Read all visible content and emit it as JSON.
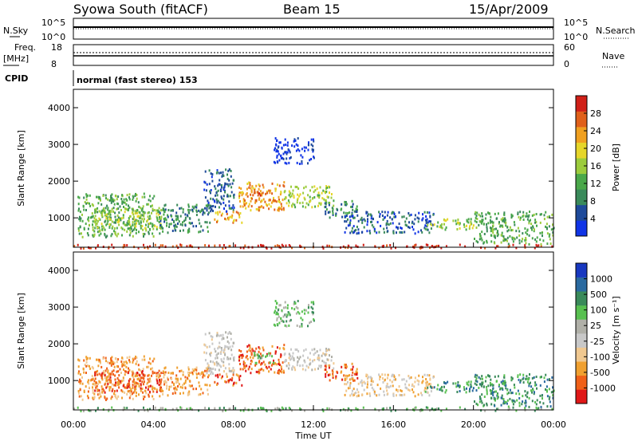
{
  "header": {
    "station": "Syowa South (fitACF)",
    "beam": "Beam 15",
    "date": "15/Apr/2009"
  },
  "top_panels": {
    "nsky_label": "N.Sky",
    "nsky_top": "10^5",
    "nsky_bottom": "10^0",
    "nsearch_label": "N.Search",
    "nsearch_top": "10^5",
    "nsearch_bottom": "10^0",
    "freq_label_1": "Freq.",
    "freq_label_2": "[MHz]",
    "freq_top": "18",
    "freq_bottom": "8",
    "nave_label": "Nave",
    "nave_top": "60",
    "nave_bottom": "0",
    "cpid_label": "CPID",
    "cpid_text": "normal (fast stereo) 153"
  },
  "axes": {
    "ylabel": "Slant Range [km]",
    "xlabel": "Time UT",
    "yticks": [
      "1000",
      "2000",
      "3000",
      "4000"
    ],
    "xticks": [
      "00:00",
      "04:00",
      "08:00",
      "12:00",
      "16:00",
      "20:00",
      "00:00"
    ]
  },
  "colors": {
    "power": [
      "#1034e6",
      "#1e4a9a",
      "#3a8a5a",
      "#4aa84a",
      "#9ccc3c",
      "#e6d62a",
      "#f0a020",
      "#e0601a",
      "#d02018"
    ],
    "velocity": [
      "#e01818",
      "#f06018",
      "#f0a030",
      "#f0c890",
      "#c8c8c8",
      "#b0b0a8",
      "#58c050",
      "#3a8a5a",
      "#2a6aa0",
      "#1838c0"
    ]
  },
  "chart_data": [
    {
      "type": "heatmap",
      "title": "Power",
      "xlabel": "Time UT",
      "ylabel": "Slant Range [km]",
      "xlim": [
        0,
        24
      ],
      "ylim": [
        200,
        4500
      ],
      "colorbar": {
        "label": "Power [dB]",
        "ticks": [
          "4",
          "8",
          "12",
          "16",
          "20",
          "24",
          "28"
        ],
        "range": [
          0,
          30
        ]
      },
      "regions": [
        {
          "t": [
            0.0,
            24.0
          ],
          "r": [
            200,
            300
          ],
          "level": 8
        },
        {
          "t": [
            0.2,
            4.0
          ],
          "r": [
            500,
            1700
          ],
          "level": 3
        },
        {
          "t": [
            1.0,
            4.5
          ],
          "r": [
            700,
            1300
          ],
          "level": 4
        },
        {
          "t": [
            4.2,
            6.8
          ],
          "r": [
            600,
            1400
          ],
          "level": 2
        },
        {
          "t": [
            6.5,
            8.0
          ],
          "r": [
            1200,
            2400
          ],
          "level": 1
        },
        {
          "t": [
            7.0,
            8.5
          ],
          "r": [
            900,
            1200
          ],
          "level": 6
        },
        {
          "t": [
            8.2,
            10.5
          ],
          "r": [
            1200,
            2000
          ],
          "level": 6
        },
        {
          "t": [
            9.0,
            10.0
          ],
          "r": [
            1500,
            1800
          ],
          "level": 7
        },
        {
          "t": [
            10.5,
            13.0
          ],
          "r": [
            1300,
            1900
          ],
          "level": 4
        },
        {
          "t": [
            12.5,
            14.2
          ],
          "r": [
            1000,
            1500
          ],
          "level": 2
        },
        {
          "t": [
            10.0,
            12.0
          ],
          "r": [
            2500,
            3200
          ],
          "level": 0
        },
        {
          "t": [
            13.5,
            18.0
          ],
          "r": [
            600,
            1200
          ],
          "level": 1
        },
        {
          "t": [
            17.5,
            20.0
          ],
          "r": [
            700,
            1000
          ],
          "level": 4
        },
        {
          "t": [
            20.0,
            24.0
          ],
          "r": [
            300,
            1200
          ],
          "level": 3
        }
      ]
    },
    {
      "type": "heatmap",
      "title": "Velocity",
      "xlabel": "Time UT",
      "ylabel": "Slant Range [km]",
      "xlim": [
        0,
        24
      ],
      "ylim": [
        200,
        4500
      ],
      "colorbar": {
        "label": "Velocity [m s⁻¹]",
        "ticks": [
          "-1000",
          "-500",
          "-100",
          "-25",
          "25",
          "100",
          "500",
          "1000"
        ],
        "range": [
          -1500,
          1500
        ]
      },
      "regions": [
        {
          "t": [
            0.0,
            24.0
          ],
          "r": [
            200,
            300
          ],
          "level": 6
        },
        {
          "t": [
            0.2,
            4.0
          ],
          "r": [
            500,
            1700
          ],
          "level": 2
        },
        {
          "t": [
            1.0,
            4.5
          ],
          "r": [
            700,
            1300
          ],
          "level": 1
        },
        {
          "t": [
            4.2,
            6.8
          ],
          "r": [
            600,
            1400
          ],
          "level": 2
        },
        {
          "t": [
            6.5,
            8.0
          ],
          "r": [
            1200,
            2400
          ],
          "level": 4
        },
        {
          "t": [
            7.0,
            8.5
          ],
          "r": [
            900,
            1200
          ],
          "level": 1
        },
        {
          "t": [
            8.2,
            10.5
          ],
          "r": [
            1200,
            2000
          ],
          "level": 1
        },
        {
          "t": [
            9.0,
            10.0
          ],
          "r": [
            1500,
            1800
          ],
          "level": 6
        },
        {
          "t": [
            10.5,
            13.0
          ],
          "r": [
            1300,
            1900
          ],
          "level": 4
        },
        {
          "t": [
            12.5,
            14.2
          ],
          "r": [
            1000,
            1500
          ],
          "level": 1
        },
        {
          "t": [
            10.0,
            12.0
          ],
          "r": [
            2500,
            3200
          ],
          "level": 6
        },
        {
          "t": [
            13.5,
            18.0
          ],
          "r": [
            600,
            1200
          ],
          "level": 3
        },
        {
          "t": [
            17.5,
            20.0
          ],
          "r": [
            700,
            1000
          ],
          "level": 7
        },
        {
          "t": [
            20.0,
            24.0
          ],
          "r": [
            300,
            1200
          ],
          "level": 7
        }
      ]
    }
  ]
}
